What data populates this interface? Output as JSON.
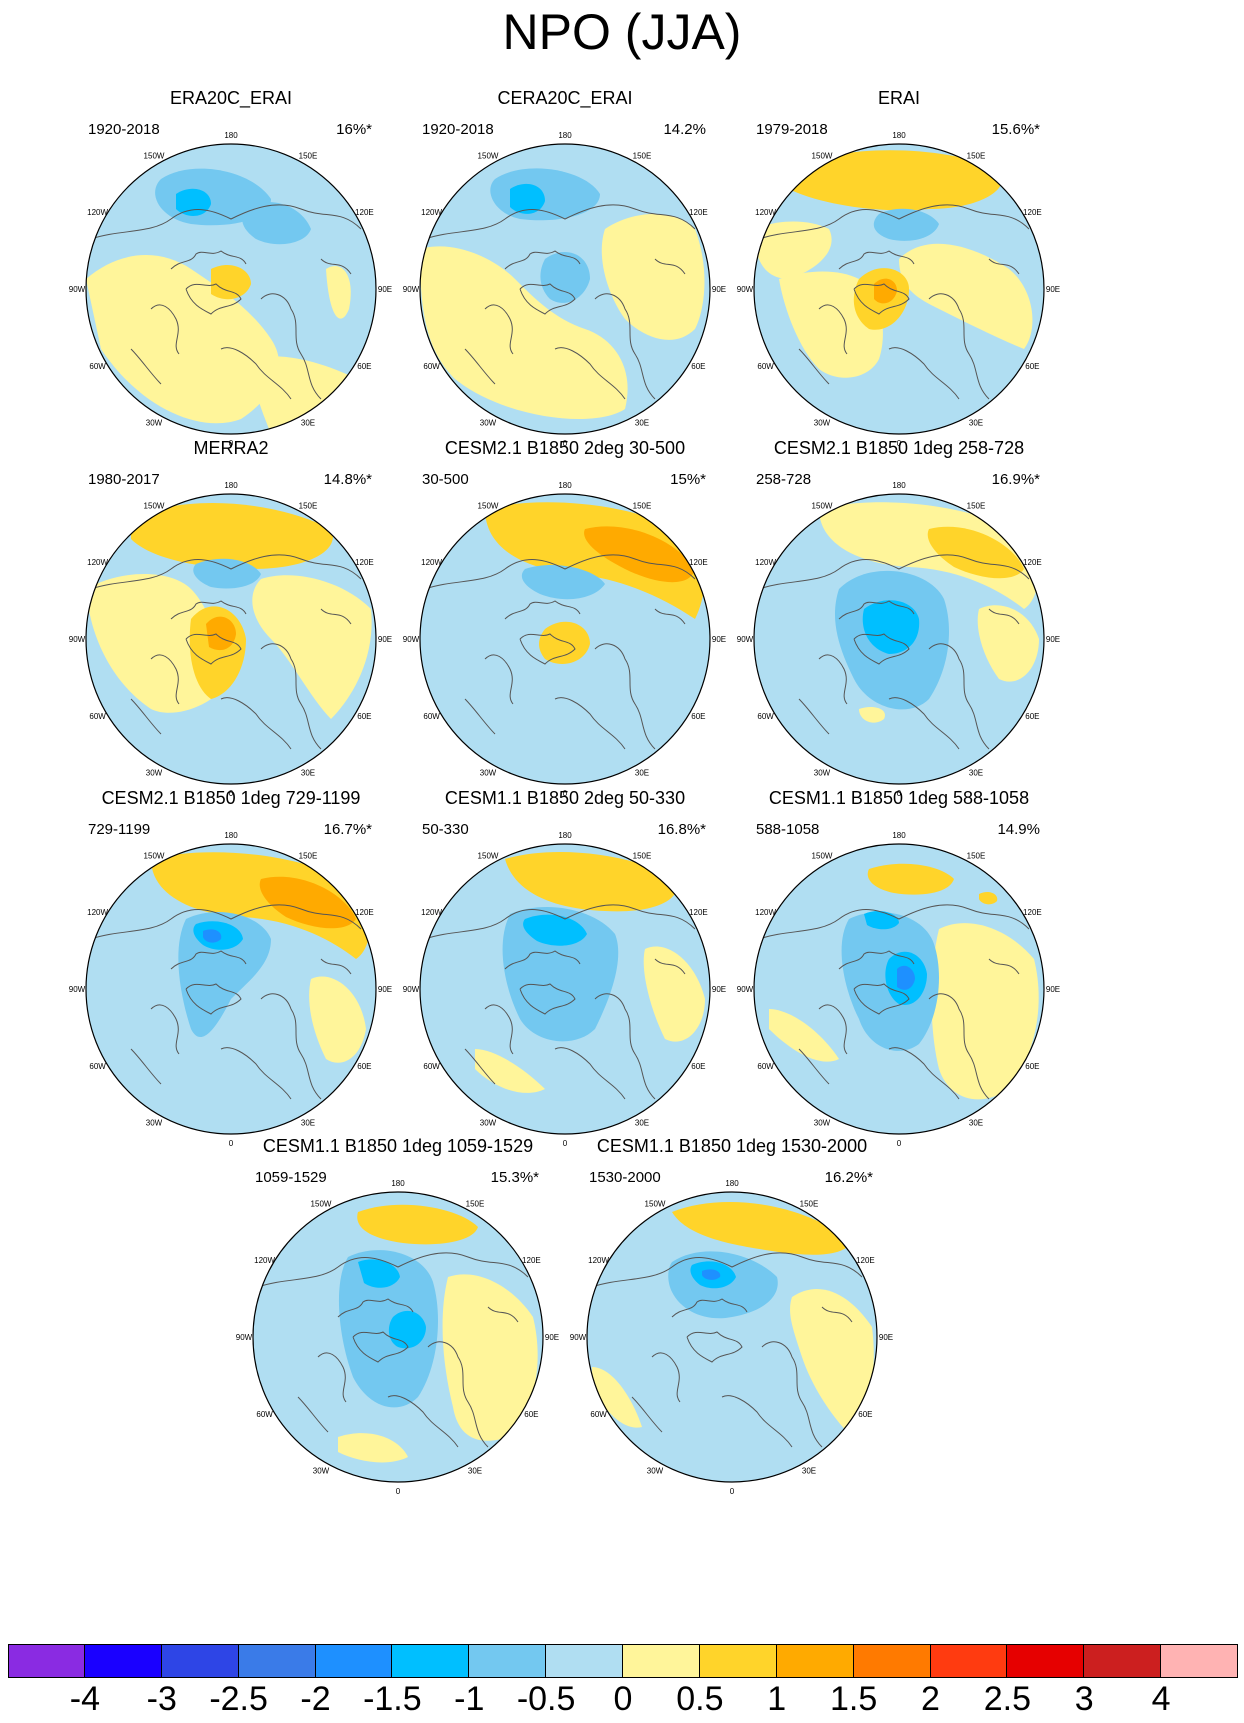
{
  "figure": {
    "title": "NPO (JJA)"
  },
  "longitude_labels": [
    "180",
    "150E",
    "120E",
    "90E",
    "60E",
    "30E",
    "0",
    "30W",
    "60W",
    "90W",
    "120W",
    "150W"
  ],
  "panels": [
    {
      "title": "ERA20C_ERAI",
      "period": "1920-2018",
      "variance": "16%*"
    },
    {
      "title": "CERA20C_ERAI",
      "period": "1920-2018",
      "variance": "14.2%"
    },
    {
      "title": "ERAI",
      "period": "1979-2018",
      "variance": "15.6%*"
    },
    {
      "title": "MERRA2",
      "period": "1980-2017",
      "variance": "14.8%*"
    },
    {
      "title": "CESM2.1 B1850 2deg 30-500",
      "period": "30-500",
      "variance": "15%*"
    },
    {
      "title": "CESM2.1 B1850 1deg 258-728",
      "period": "258-728",
      "variance": "16.9%*"
    },
    {
      "title": "CESM2.1 B1850 1deg 729-1199",
      "period": "729-1199",
      "variance": "16.7%*"
    },
    {
      "title": "CESM1.1 B1850 2deg 50-330",
      "period": "50-330",
      "variance": "16.8%*"
    },
    {
      "title": "CESM1.1 B1850 1deg 588-1058",
      "period": "588-1058",
      "variance": "14.9%"
    },
    {
      "title": "CESM1.1 B1850 1deg 1059-1529",
      "period": "1059-1529",
      "variance": "15.3%*"
    },
    {
      "title": "CESM1.1 B1850 1deg 1530-2000",
      "period": "1530-2000",
      "variance": "16.2%*"
    }
  ],
  "colorbar": {
    "labels": [
      "-4",
      "-3",
      "-2.5",
      "-2",
      "-1.5",
      "-1",
      "-0.5",
      "0",
      "0.5",
      "1",
      "1.5",
      "2",
      "2.5",
      "3",
      "4"
    ],
    "colors": [
      "#8a2be2",
      "#1a00ff",
      "#2e45e6",
      "#3a7be8",
      "#1e90ff",
      "#00bfff",
      "#73c8f0",
      "#b0def2",
      "#fff59a",
      "#ffd42a",
      "#ffaa00",
      "#ff7a00",
      "#ff3b10",
      "#e60000",
      "#cc1f1f",
      "#ffb3b3"
    ]
  }
}
